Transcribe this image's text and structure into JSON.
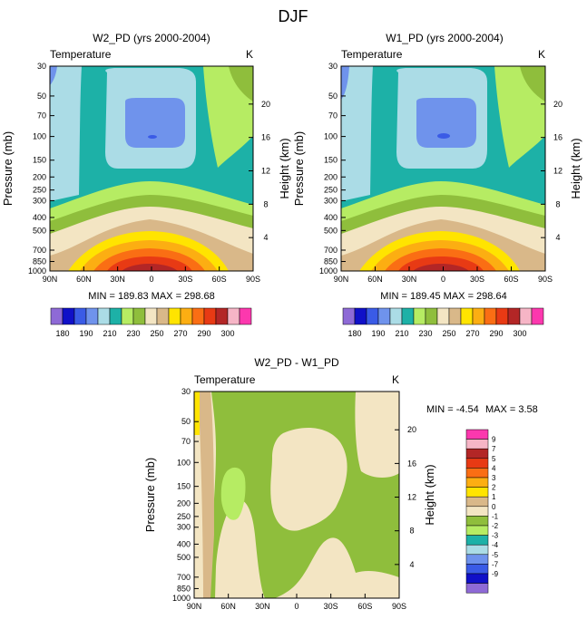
{
  "page_title": "DJF",
  "colors": {
    "abs_levels": [
      "#8e6ad6",
      "#1010c8",
      "#3a5be6",
      "#6f93ec",
      "#abdce6",
      "#1db1a7",
      "#b6ec63",
      "#8fbe3c",
      "#f3e5c3",
      "#d9b889",
      "#ffe400",
      "#fcae12",
      "#fa6e14",
      "#e83a14",
      "#b32626",
      "#f6b5c6",
      "#fc38ae"
    ],
    "diff_levels": [
      "#8e6ad6",
      "#1010c8",
      "#3a5be6",
      "#6f93ec",
      "#abdce6",
      "#1db1a7",
      "#b6ec63",
      "#8fbe3c",
      "#f3e5c3",
      "#d9b889",
      "#ffe400",
      "#fcae12",
      "#fa6e14",
      "#e83a14",
      "#b32626",
      "#f6b5c6",
      "#fc38ae"
    ]
  },
  "chart_data": [
    {
      "type": "heatmap",
      "title": "W2_PD (yrs 2000-2004)",
      "left_label": "Temperature",
      "right_label": "K",
      "ylabel": "Pressure (mb)",
      "y2label": "Height (km)",
      "x_ticks": [
        "90N",
        "60N",
        "30N",
        "0",
        "30S",
        "60S",
        "90S"
      ],
      "x_values": [
        90,
        60,
        30,
        0,
        -30,
        -60,
        -90
      ],
      "y_ticks": [
        "30",
        "50",
        "70",
        "100",
        "150",
        "200",
        "250",
        "300",
        "400",
        "500",
        "700",
        "850",
        "1000"
      ],
      "y_values": [
        30,
        50,
        70,
        100,
        150,
        200,
        250,
        300,
        400,
        500,
        700,
        850,
        1000
      ],
      "y2_ticks": [
        "20",
        "16",
        "12",
        "8",
        "4"
      ],
      "y2_values": [
        20,
        16,
        12,
        8,
        4
      ],
      "ylim": [
        30,
        1000
      ],
      "stats": "MIN = 189.83   MAX = 298.68",
      "min": 189.83,
      "max": 298.68,
      "cold_core_temp": 195,
      "levels": [
        180,
        185,
        190,
        195,
        200,
        210,
        220,
        230,
        240,
        250,
        260,
        270,
        280,
        290,
        295,
        300
      ],
      "legend_labels": [
        "180",
        "190",
        "210",
        "230",
        "250",
        "270",
        "290",
        "300"
      ]
    },
    {
      "type": "heatmap",
      "title": "W1_PD (yrs 2000-2004)",
      "left_label": "Temperature",
      "right_label": "K",
      "ylabel": "Pressure (mb)",
      "y2label": "Height (km)",
      "x_ticks": [
        "90N",
        "60N",
        "30N",
        "0",
        "30S",
        "60S",
        "90S"
      ],
      "x_values": [
        90,
        60,
        30,
        0,
        -30,
        -60,
        -90
      ],
      "y_ticks": [
        "30",
        "50",
        "70",
        "100",
        "150",
        "200",
        "250",
        "300",
        "400",
        "500",
        "700",
        "850",
        "1000"
      ],
      "y_values": [
        30,
        50,
        70,
        100,
        150,
        200,
        250,
        300,
        400,
        500,
        700,
        850,
        1000
      ],
      "y2_ticks": [
        "20",
        "16",
        "12",
        "8",
        "4"
      ],
      "y2_values": [
        20,
        16,
        12,
        8,
        4
      ],
      "ylim": [
        30,
        1000
      ],
      "stats": "MIN = 189.45   MAX = 298.64",
      "min": 189.45,
      "max": 298.64,
      "cold_core_temp": 195,
      "levels": [
        180,
        185,
        190,
        195,
        200,
        210,
        220,
        230,
        240,
        250,
        260,
        270,
        280,
        290,
        295,
        300
      ],
      "legend_labels": [
        "180",
        "190",
        "210",
        "230",
        "250",
        "270",
        "290",
        "300"
      ]
    },
    {
      "type": "heatmap",
      "title": "W2_PD - W1_PD",
      "left_label": "Temperature",
      "right_label": "K",
      "ylabel": "Pressure (mb)",
      "y2label": "Height (km)",
      "x_ticks": [
        "90N",
        "60N",
        "30N",
        "0",
        "30S",
        "60S",
        "90S"
      ],
      "x_values": [
        90,
        60,
        30,
        0,
        -30,
        -60,
        -90
      ],
      "y_ticks": [
        "30",
        "50",
        "70",
        "100",
        "150",
        "200",
        "250",
        "300",
        "400",
        "500",
        "700",
        "850",
        "1000"
      ],
      "y_values": [
        30,
        50,
        70,
        100,
        150,
        200,
        250,
        300,
        400,
        500,
        700,
        850,
        1000
      ],
      "y2_ticks": [
        "20",
        "16",
        "12",
        "8",
        "4"
      ],
      "y2_values": [
        20,
        16,
        12,
        8,
        4
      ],
      "ylim": [
        30,
        1000
      ],
      "stats_min": "MIN = -4.54",
      "stats_max": "MAX =   3.58",
      "min": -4.54,
      "max": 3.58,
      "levels": [
        -9,
        -7,
        -5,
        -4,
        -3,
        -2,
        -1,
        0,
        1,
        2,
        3,
        4,
        5,
        7,
        9
      ],
      "legend_labels": [
        "9",
        "7",
        "5",
        "4",
        "3",
        "2",
        "1",
        "0",
        "-1",
        "-2",
        "-3",
        "-4",
        "-5",
        "-7",
        "-9"
      ]
    }
  ]
}
